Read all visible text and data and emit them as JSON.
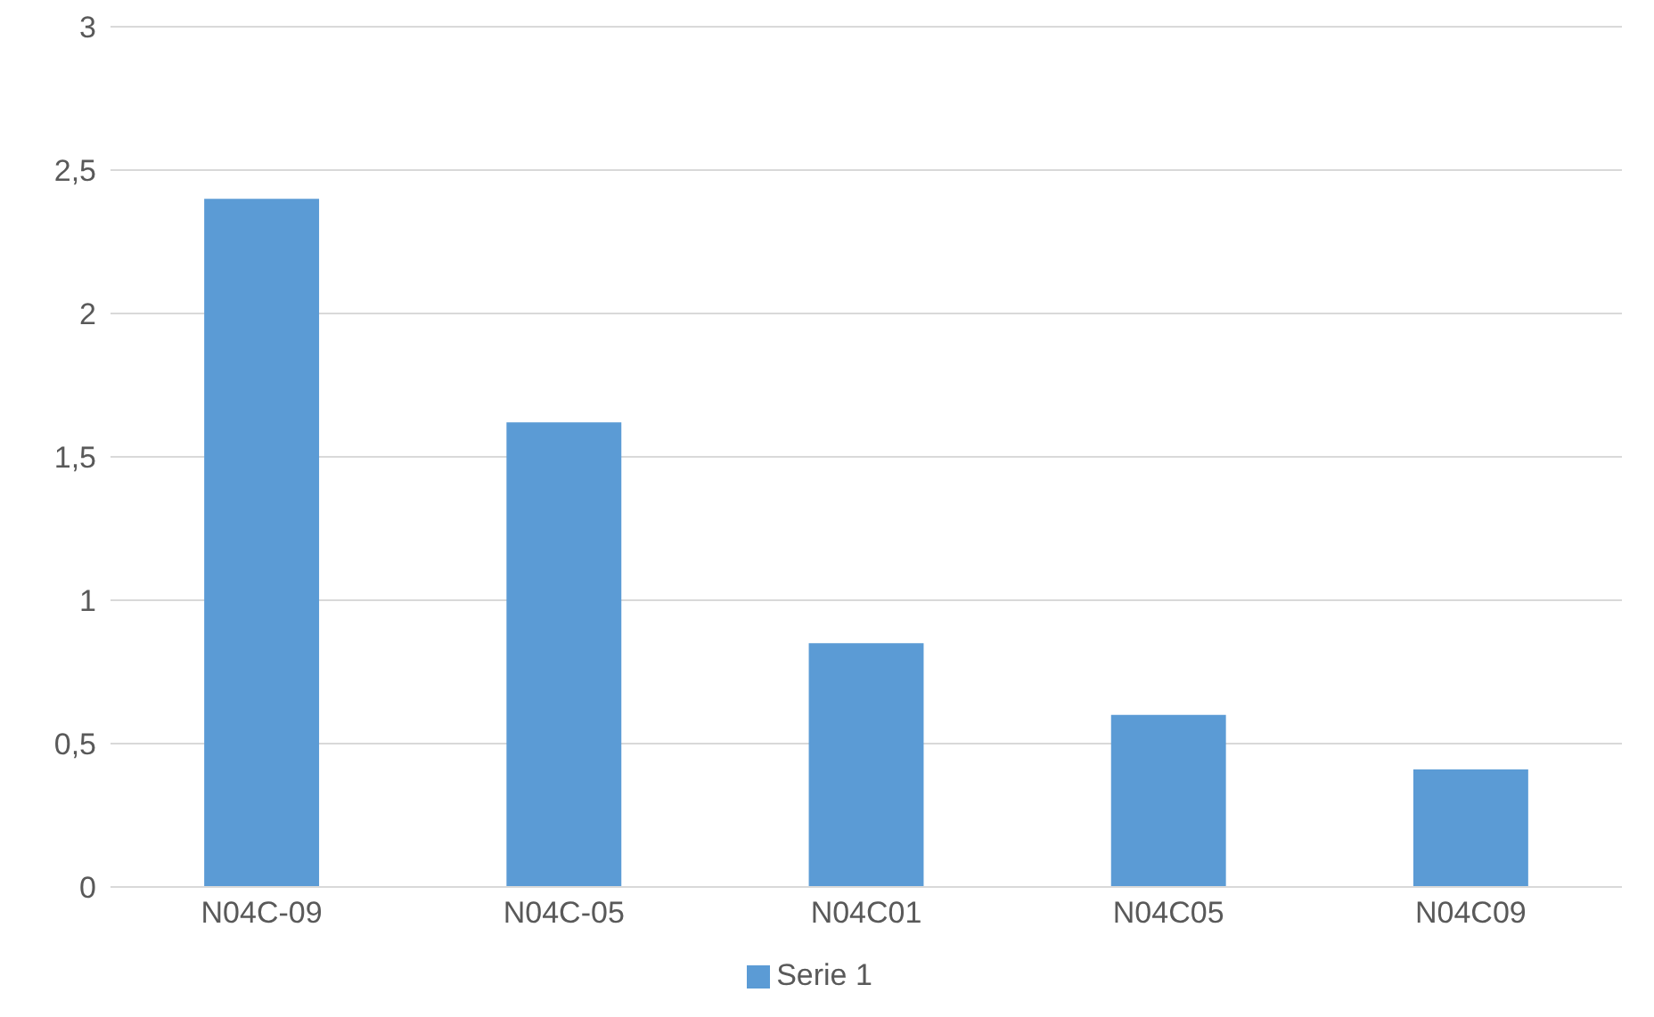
{
  "chart_data": {
    "type": "bar",
    "categories": [
      "N04C-09",
      "N04C-05",
      "N04C01",
      "N04C05",
      "N04C09"
    ],
    "series": [
      {
        "name": "Serie 1",
        "color": "#5b9bd5",
        "values": [
          2.4,
          1.62,
          0.85,
          0.6,
          0.41
        ]
      }
    ],
    "ylim": [
      0,
      3
    ],
    "yticks": [
      0,
      {
        "value": 0.5,
        "label": "0,5"
      },
      1,
      {
        "value": 1.5,
        "label": "1,5"
      },
      2,
      {
        "value": 2.5,
        "label": "2,5"
      },
      3
    ],
    "grid": "y",
    "legend": "bottom"
  }
}
